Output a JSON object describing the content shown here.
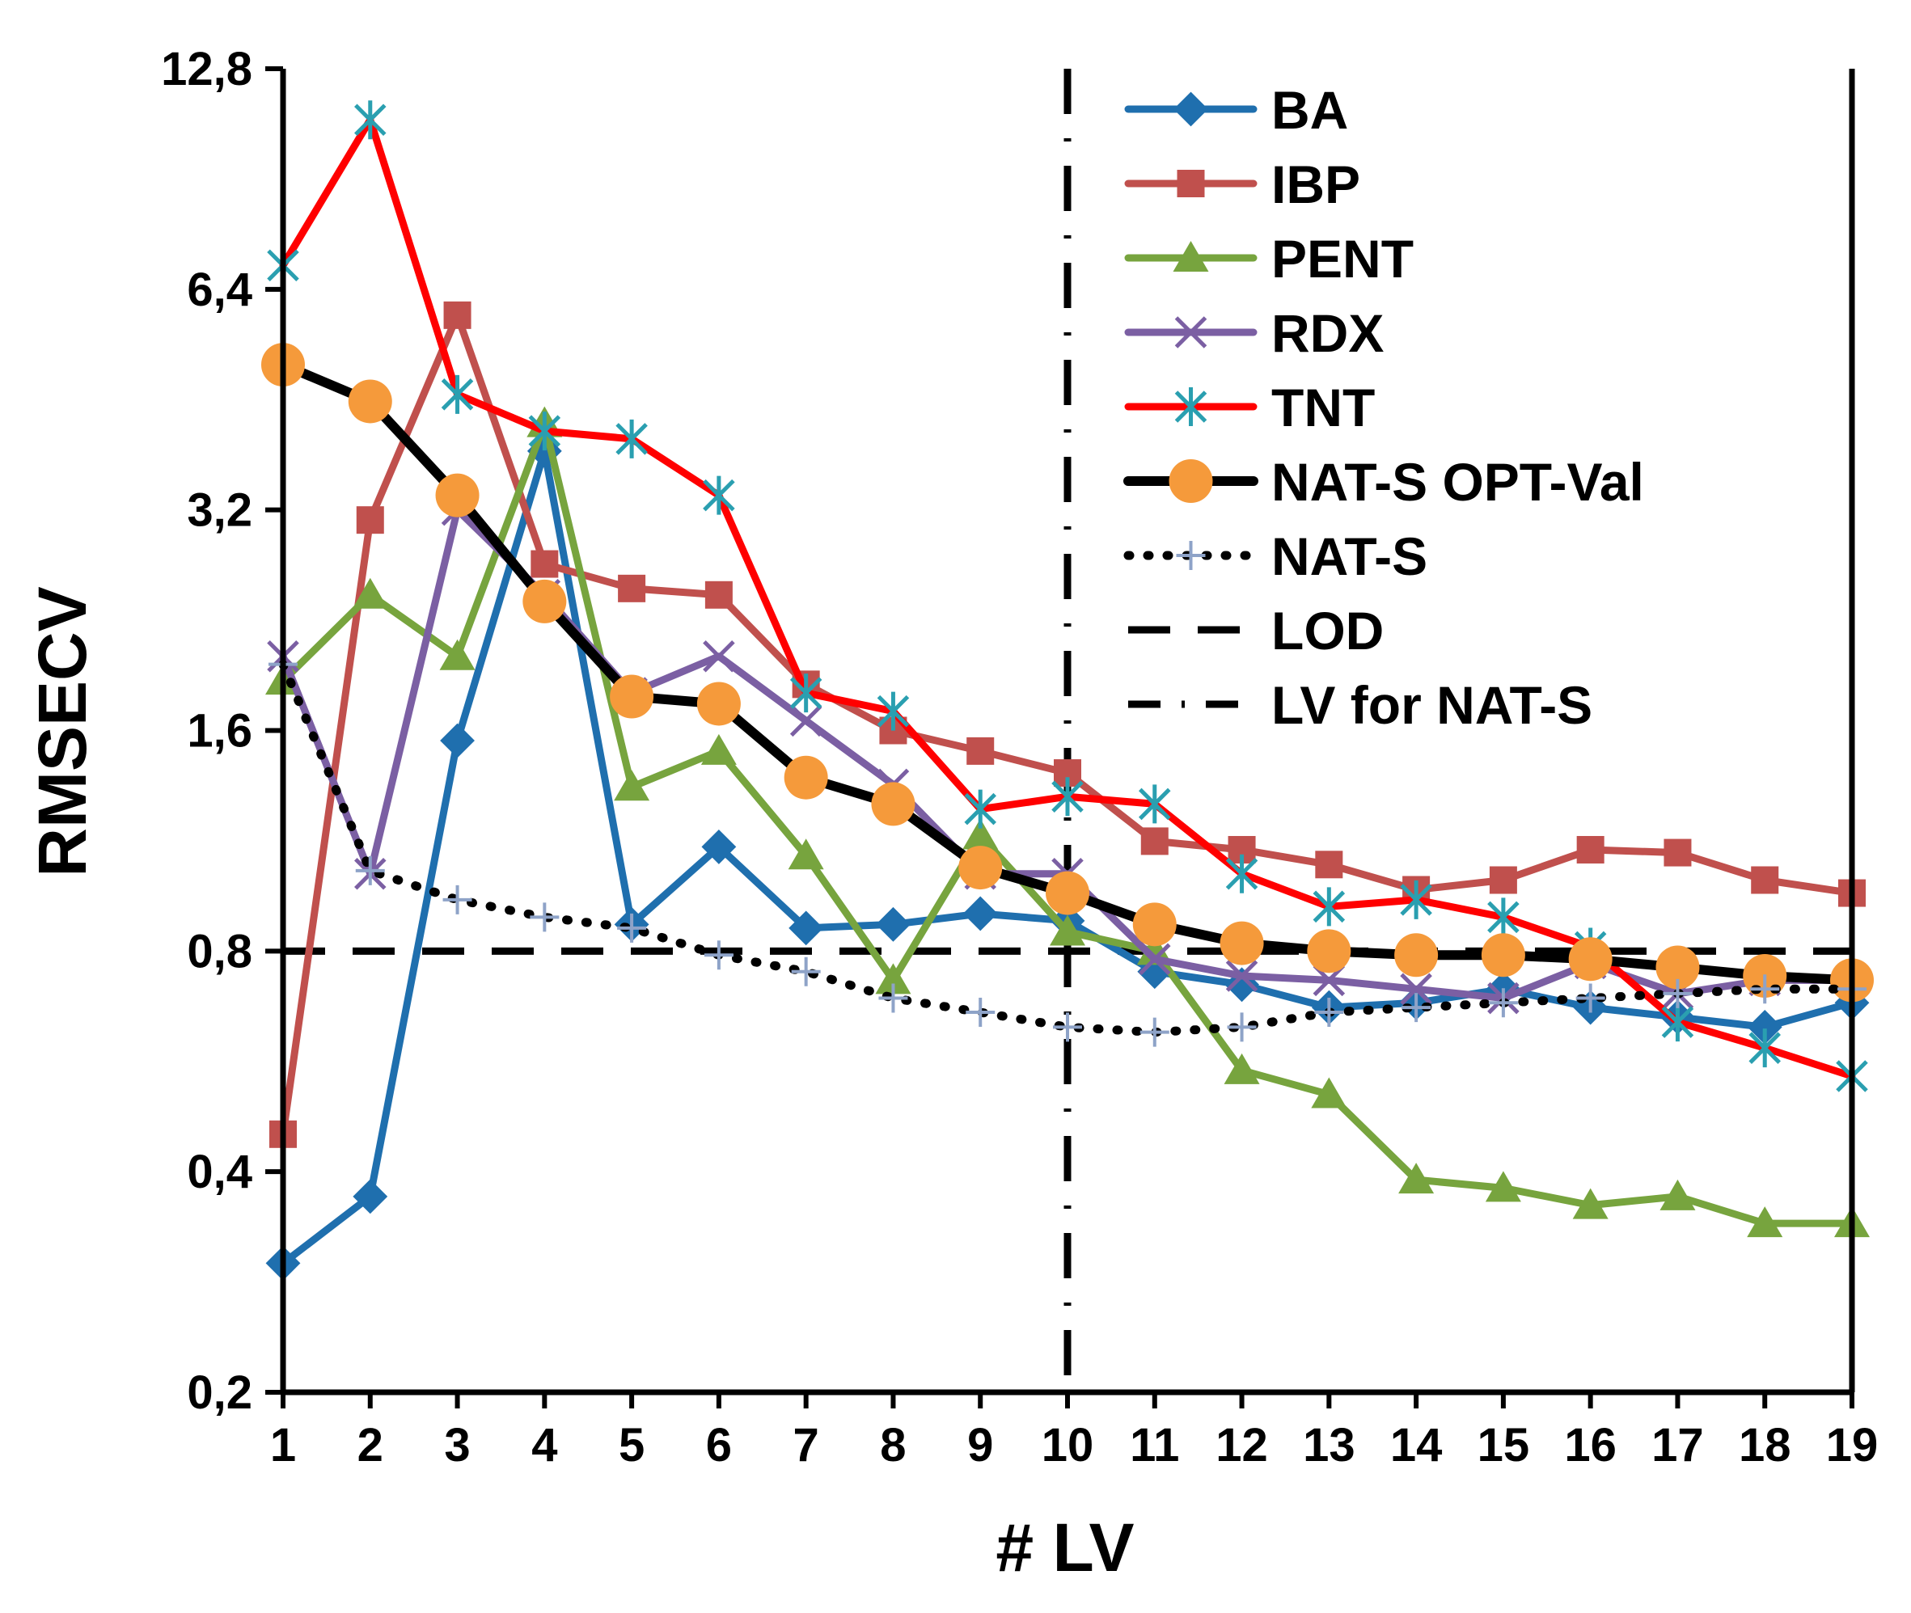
{
  "chart_data": {
    "type": "line",
    "title": "",
    "xlabel": "# LV",
    "ylabel": "RMSECV",
    "y_scale": "log2",
    "ylim": [
      0.2,
      12.8
    ],
    "xlim": [
      1,
      19
    ],
    "y_ticks": [
      0.2,
      0.4,
      0.8,
      1.6,
      3.2,
      6.4,
      12.8
    ],
    "y_tick_labels": [
      "0,2",
      "0,4",
      "0,8",
      "1,6",
      "3,2",
      "6,4",
      "12,8"
    ],
    "x": [
      1,
      2,
      3,
      4,
      5,
      6,
      7,
      8,
      9,
      10,
      11,
      12,
      13,
      14,
      15,
      16,
      17,
      18,
      19
    ],
    "x_tick_labels": [
      "1",
      "2",
      "3",
      "4",
      "5",
      "6",
      "7",
      "8",
      "9",
      "10",
      "11",
      "12",
      "13",
      "14",
      "15",
      "16",
      "17",
      "18",
      "19"
    ],
    "grid": false,
    "legend_position": "top-right",
    "series": [
      {
        "name": "BA",
        "color": "#1f6fae",
        "marker": "diamond",
        "line": "solid",
        "values": [
          0.3,
          0.37,
          1.55,
          3.85,
          0.87,
          1.11,
          0.86,
          0.87,
          0.9,
          0.88,
          0.75,
          0.72,
          0.67,
          0.68,
          0.71,
          0.67,
          0.65,
          0.63,
          0.68
        ]
      },
      {
        "name": "IBP",
        "color": "#c0504d",
        "marker": "square",
        "line": "solid",
        "values": [
          0.45,
          3.1,
          5.9,
          2.7,
          2.5,
          2.45,
          1.85,
          1.6,
          1.5,
          1.4,
          1.13,
          1.1,
          1.05,
          0.97,
          1.0,
          1.1,
          1.09,
          1.0,
          0.96
        ]
      },
      {
        "name": "PENT",
        "color": "#77a43e",
        "marker": "triangle",
        "line": "solid",
        "values": [
          1.87,
          2.45,
          2.02,
          4.2,
          1.34,
          1.5,
          1.08,
          0.73,
          1.15,
          0.85,
          0.8,
          0.55,
          0.51,
          0.39,
          0.38,
          0.36,
          0.37,
          0.34,
          0.34
        ]
      },
      {
        "name": "RDX",
        "color": "#7b5fa3",
        "marker": "x",
        "line": "solid",
        "values": [
          2.02,
          1.02,
          3.2,
          2.45,
          1.8,
          2.02,
          1.65,
          1.35,
          1.02,
          1.02,
          0.78,
          0.74,
          0.73,
          0.71,
          0.69,
          0.77,
          0.7,
          0.73,
          0.73
        ]
      },
      {
        "name": "TNT",
        "color": "#ff0000",
        "marker": "star",
        "line": "solid",
        "values": [
          6.9,
          10.9,
          4.6,
          4.1,
          4.0,
          3.35,
          1.8,
          1.7,
          1.25,
          1.3,
          1.27,
          1.02,
          0.92,
          0.94,
          0.89,
          0.81,
          0.64,
          0.59,
          0.54
        ]
      },
      {
        "name": "NAT-S OPT-Val",
        "color": "#000000",
        "marker_color": "#f59a3b",
        "marker": "circle",
        "line": "solid",
        "values": [
          5.05,
          4.5,
          3.35,
          2.4,
          1.78,
          1.74,
          1.38,
          1.27,
          1.04,
          0.96,
          0.87,
          0.82,
          0.8,
          0.79,
          0.79,
          0.78,
          0.76,
          0.74,
          0.73
        ]
      },
      {
        "name": "NAT-S",
        "color": "#000000",
        "marker_color": "#8ea3c8",
        "marker": "plus",
        "line": "dotted",
        "values": [
          1.97,
          1.03,
          0.94,
          0.89,
          0.86,
          0.79,
          0.75,
          0.69,
          0.66,
          0.63,
          0.62,
          0.63,
          0.66,
          0.67,
          0.68,
          0.69,
          0.7,
          0.71,
          0.71
        ]
      }
    ],
    "reference_lines": [
      {
        "name": "LOD",
        "orientation": "horizontal",
        "value": 0.8,
        "style": "dashed"
      },
      {
        "name": "LV for NAT-S",
        "orientation": "vertical",
        "value": 10,
        "style": "dash-dot"
      }
    ],
    "legend_entries": [
      "BA",
      "IBP",
      "PENT",
      "RDX",
      "TNT",
      "NAT-S OPT-Val",
      "NAT-S",
      "LOD",
      "LV for NAT-S"
    ]
  }
}
